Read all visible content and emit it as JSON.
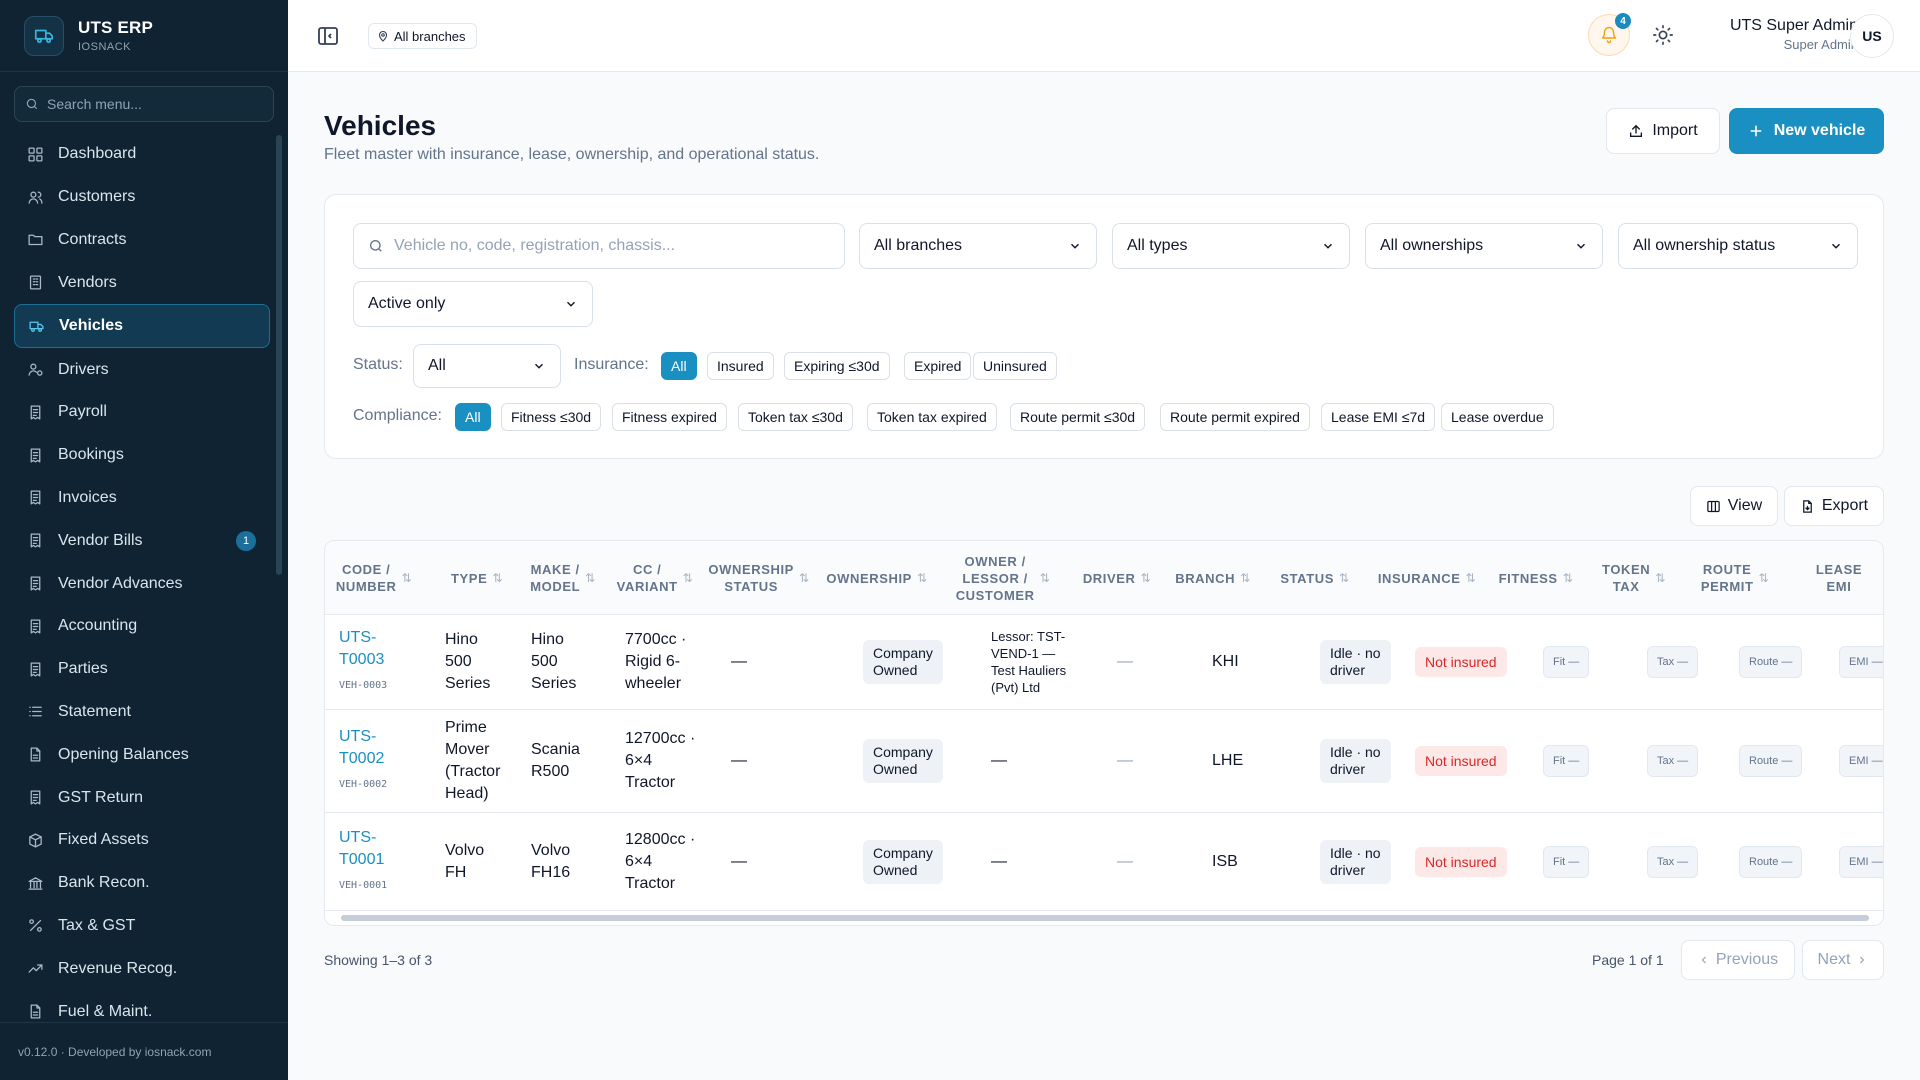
{
  "brand": {
    "title": "UTS ERP",
    "subtitle": "IOSNACK"
  },
  "sidebar": {
    "search_placeholder": "Search menu...",
    "items": [
      {
        "label": "Dashboard",
        "icon": "grid-icon"
      },
      {
        "label": "Customers",
        "icon": "users-icon"
      },
      {
        "label": "Contracts",
        "icon": "folder-icon"
      },
      {
        "label": "Vendors",
        "icon": "building-icon"
      },
      {
        "label": "Vehicles",
        "icon": "truck-icon",
        "active": true
      },
      {
        "label": "Drivers",
        "icon": "driver-icon"
      },
      {
        "label": "Payroll",
        "icon": "receipt-icon"
      },
      {
        "label": "Bookings",
        "icon": "receipt-icon"
      },
      {
        "label": "Invoices",
        "icon": "receipt-icon"
      },
      {
        "label": "Vendor Bills",
        "icon": "receipt-icon",
        "badge": "1"
      },
      {
        "label": "Vendor Advances",
        "icon": "receipt-icon"
      },
      {
        "label": "Accounting",
        "icon": "receipt-icon"
      },
      {
        "label": "Parties",
        "icon": "receipt-icon"
      },
      {
        "label": "Statement",
        "icon": "list-icon"
      },
      {
        "label": "Opening Balances",
        "icon": "document-icon"
      },
      {
        "label": "GST Return",
        "icon": "receipt-icon"
      },
      {
        "label": "Fixed Assets",
        "icon": "box-icon"
      },
      {
        "label": "Bank Recon.",
        "icon": "bank-icon"
      },
      {
        "label": "Tax & GST",
        "icon": "percent-icon"
      },
      {
        "label": "Revenue Recog.",
        "icon": "trend-icon"
      },
      {
        "label": "Fuel & Maint.",
        "icon": "document-icon"
      }
    ],
    "footer": "v0.12.0 · Developed by iosnack.com"
  },
  "topbar": {
    "branch_chip": "All branches",
    "notifications_count": "4",
    "user_name": "UTS Super Admin",
    "user_role": "Super Admin",
    "avatar_initials": "US"
  },
  "page": {
    "title": "Vehicles",
    "subtitle": "Fleet master with insurance, lease, ownership, and operational status.",
    "import_label": "Import",
    "new_label": "New vehicle"
  },
  "filters": {
    "search_placeholder": "Vehicle no, code, registration, chassis...",
    "branches": "All branches",
    "types": "All types",
    "ownerships": "All ownerships",
    "ownership_status": "All ownership status",
    "active": "Active only",
    "status_label": "Status:",
    "status_value": "All",
    "insurance_label": "Insurance:",
    "insurance_options": [
      "All",
      "Insured",
      "Expiring ≤30d",
      "Expired",
      "Uninsured"
    ],
    "compliance_label": "Compliance:",
    "compliance_options": [
      "All",
      "Fitness ≤30d",
      "Fitness expired",
      "Token tax ≤30d",
      "Token tax expired",
      "Route permit ≤30d",
      "Route permit expired",
      "Lease EMI ≤7d",
      "Lease overdue"
    ]
  },
  "table_actions": {
    "view_label": "View",
    "export_label": "Export"
  },
  "table": {
    "columns": [
      {
        "line1": "CODE /",
        "line2": "NUMBER"
      },
      {
        "line1": "TYPE",
        "line2": ""
      },
      {
        "line1": "MAKE /",
        "line2": "MODEL"
      },
      {
        "line1": "CC /",
        "line2": "VARIANT"
      },
      {
        "line1": "OWNERSHIP",
        "line2": "STATUS"
      },
      {
        "line1": "OWNERSHIP",
        "line2": ""
      },
      {
        "line1": "OWNER /",
        "line2": "LESSOR /",
        "line3": "CUSTOMER"
      },
      {
        "line1": "DRIVER",
        "line2": ""
      },
      {
        "line1": "BRANCH",
        "line2": ""
      },
      {
        "line1": "STATUS",
        "line2": ""
      },
      {
        "line1": "INSURANCE",
        "line2": ""
      },
      {
        "line1": "FITNESS",
        "line2": ""
      },
      {
        "line1": "TOKEN",
        "line2": "TAX"
      },
      {
        "line1": "ROUTE",
        "line2": "PERMIT"
      },
      {
        "line1": "LEASE",
        "line2": "EMI"
      }
    ],
    "rows": [
      {
        "code_l1": "UTS-",
        "code_l2": "T0003",
        "code_sub": "VEH-0003",
        "type": [
          "Hino",
          "500",
          "Series"
        ],
        "make": [
          "Hino",
          "500",
          "Series"
        ],
        "cc": [
          "7700cc ·",
          "Rigid 6-",
          "wheeler"
        ],
        "ownership_status": "—",
        "ownership": [
          "Company",
          "Owned"
        ],
        "owner": [
          "Lessor: TST-",
          "VEND-1 —",
          "Test Hauliers",
          "(Pvt) Ltd"
        ],
        "driver": "—",
        "branch": "KHI",
        "status": [
          "Idle · no",
          "driver"
        ],
        "insurance": "Not insured",
        "fitness": "Fit —",
        "token_tax": "Tax —",
        "route_permit": "Route —",
        "lease_emi": "EMI —"
      },
      {
        "code_l1": "UTS-",
        "code_l2": "T0002",
        "code_sub": "VEH-0002",
        "type": [
          "Prime",
          "Mover",
          "(Tractor",
          "Head)"
        ],
        "make": [
          "Scania",
          "R500"
        ],
        "cc": [
          "12700cc ·",
          "6×4",
          "Tractor"
        ],
        "ownership_status": "—",
        "ownership": [
          "Company",
          "Owned"
        ],
        "owner": [
          "—"
        ],
        "driver": "—",
        "branch": "LHE",
        "status": [
          "Idle · no",
          "driver"
        ],
        "insurance": "Not insured",
        "fitness": "Fit —",
        "token_tax": "Tax —",
        "route_permit": "Route —",
        "lease_emi": "EMI —"
      },
      {
        "code_l1": "UTS-",
        "code_l2": "T0001",
        "code_sub": "VEH-0001",
        "type": [
          "Volvo",
          "FH"
        ],
        "make": [
          "Volvo",
          "FH16"
        ],
        "cc": [
          "12800cc ·",
          "6×4",
          "Tractor"
        ],
        "ownership_status": "—",
        "ownership": [
          "Company",
          "Owned"
        ],
        "owner": [
          "—"
        ],
        "driver": "—",
        "branch": "ISB",
        "status": [
          "Idle · no",
          "driver"
        ],
        "insurance": "Not insured",
        "fitness": "Fit —",
        "token_tax": "Tax —",
        "route_permit": "Route —",
        "lease_emi": "EMI —"
      }
    ]
  },
  "pagination": {
    "showing": "Showing 1–3 of 3",
    "page_info": "Page 1 of 1",
    "prev_label": "Previous",
    "next_label": "Next"
  },
  "colors": {
    "accent": "#1a8fc1",
    "sidebar_bg": "#0f2333",
    "danger": "#dc2626"
  }
}
